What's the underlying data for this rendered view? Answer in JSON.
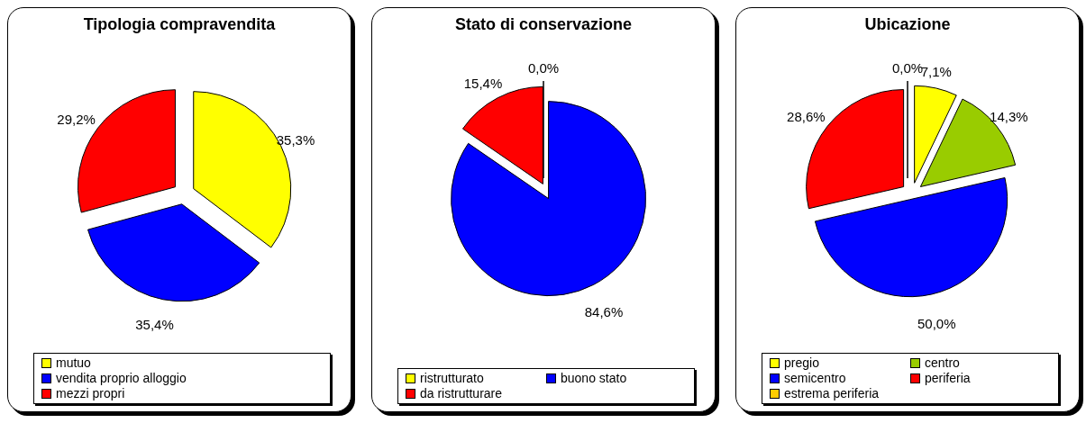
{
  "chart_data": [
    {
      "type": "pie",
      "title": "Tipologia compravendita",
      "categories": [
        "mutuo",
        "vendita proprio alloggio",
        "mezzi propri"
      ],
      "values": [
        35.3,
        35.4,
        29.2
      ],
      "colors": [
        "#ffff00",
        "#0000ff",
        "#ff0000"
      ],
      "value_labels": [
        "35,3%",
        "35,4%",
        "29,2%"
      ],
      "legend": "bottom"
    },
    {
      "type": "pie",
      "title": "Stato di conservazione",
      "categories": [
        "ristrutturato",
        "buono stato",
        "da ristrutturare"
      ],
      "values": [
        0.0,
        84.6,
        15.4
      ],
      "colors": [
        "#ffff00",
        "#0000ff",
        "#ff0000"
      ],
      "value_labels": [
        "0,0%",
        "84,6%",
        "15,4%"
      ],
      "legend": "bottom"
    },
    {
      "type": "pie",
      "title": "Ubicazione",
      "categories": [
        "pregio",
        "centro",
        "semicentro",
        "periferia",
        "estrema periferia"
      ],
      "values": [
        7.1,
        14.3,
        50.0,
        28.6,
        0.0
      ],
      "colors": [
        "#ffff00",
        "#99cc00",
        "#0000ff",
        "#ff0000",
        "#ffcc00"
      ],
      "value_labels": [
        "7,1%",
        "14,3%",
        "50,0%",
        "28,6%",
        "0,0%"
      ],
      "legend": "bottom"
    }
  ]
}
